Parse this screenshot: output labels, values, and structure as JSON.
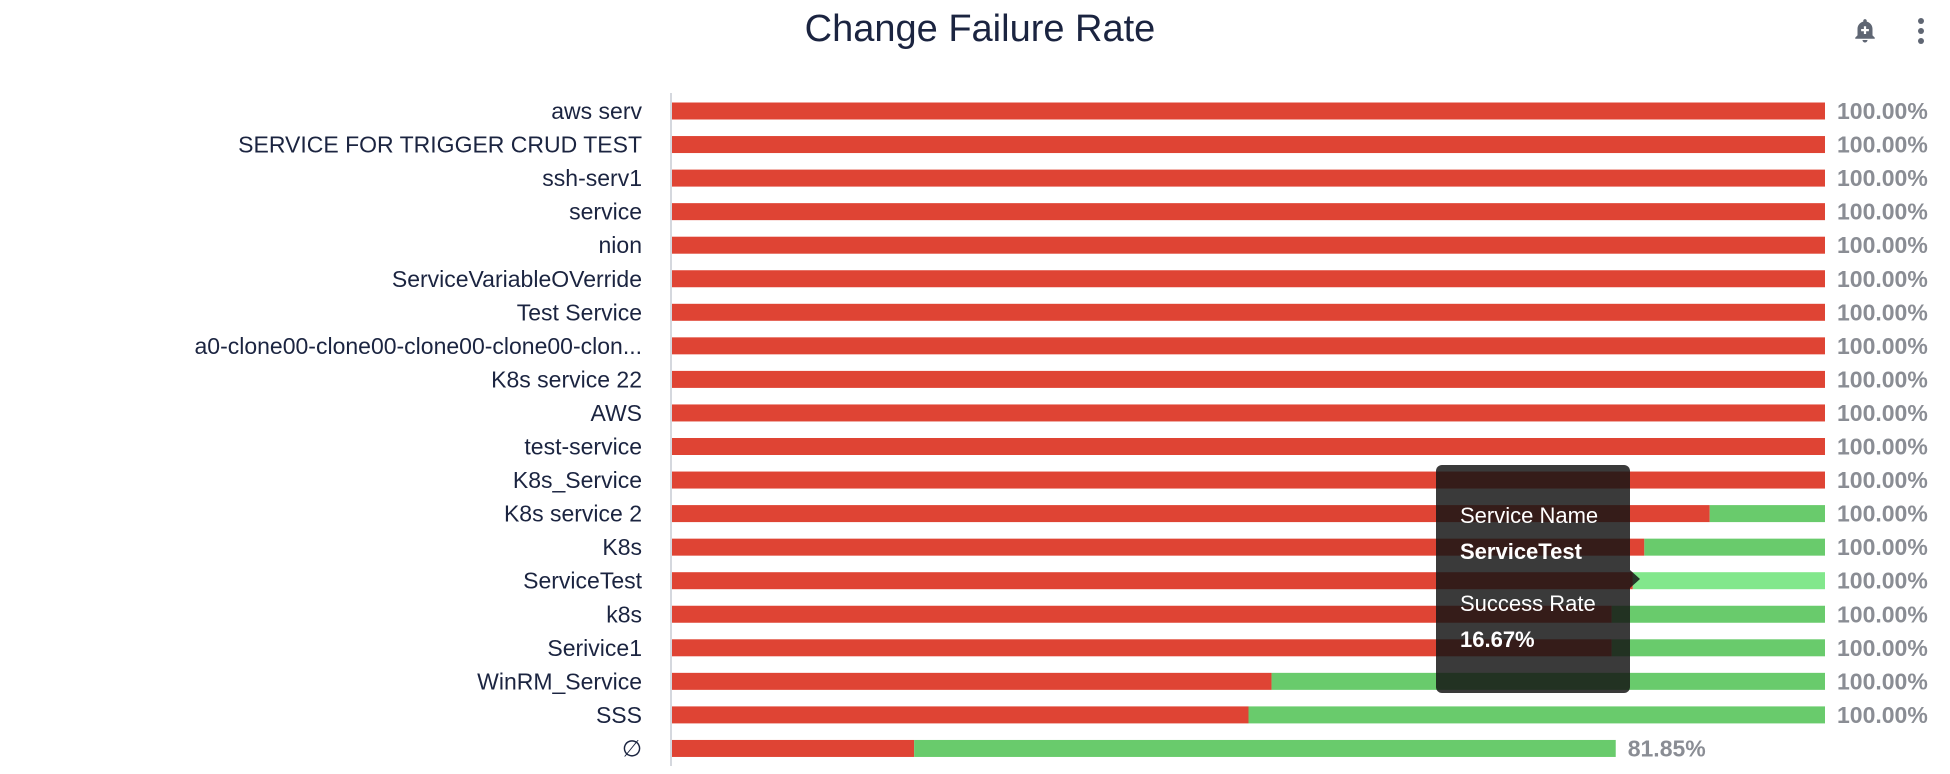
{
  "header": {
    "title": "Change Failure Rate",
    "icons": [
      "add-alert-icon",
      "more-vertical-icon"
    ]
  },
  "colors": {
    "failure": "#df4434",
    "success": "#69cb6c",
    "success_highlight": "#82e78c",
    "value_label": "#8a8d94",
    "axis": "#c7cbd3"
  },
  "chart_data": {
    "type": "bar",
    "orientation": "horizontal",
    "stacked": true,
    "title": "Change Failure Rate",
    "xlim": [
      0,
      100
    ],
    "grid": false,
    "legend": "none",
    "categories": [
      "aws serv",
      "SERVICE FOR TRIGGER CRUD TEST",
      "ssh-serv1",
      "service",
      "nion",
      "ServiceVariableOVerride",
      "Test Service",
      "a0-clone00-clone00-clone00-clone00-clon...",
      "K8s service 22",
      "AWS",
      "test-service",
      "K8s_Service",
      "K8s service 2",
      "K8s",
      "ServiceTest",
      "k8s",
      "Serivice1",
      "WinRM_Service",
      "SSS",
      "∅"
    ],
    "series": [
      {
        "values": [
          100,
          100,
          100,
          100,
          100,
          100,
          100,
          100,
          100,
          100,
          100,
          100,
          90,
          84.33,
          83.33,
          81.5,
          81.5,
          52,
          50,
          21
        ]
      },
      {
        "values": [
          0,
          0,
          0,
          0,
          0,
          0,
          0,
          0,
          0,
          0,
          0,
          0,
          10,
          15.67,
          16.67,
          18.5,
          18.5,
          48,
          50,
          60.85
        ]
      }
    ],
    "value_labels": [
      "100.00%",
      "100.00%",
      "100.00%",
      "100.00%",
      "100.00%",
      "100.00%",
      "100.00%",
      "100.00%",
      "100.00%",
      "100.00%",
      "100.00%",
      "100.00%",
      "100.00%",
      "100.00%",
      "100.00%",
      "100.00%",
      "100.00%",
      "100.00%",
      "100.00%",
      "81.85%"
    ],
    "highlighted_category": "ServiceTest"
  },
  "tooltip": {
    "name_title": "Service Name",
    "name_value": "ServiceTest",
    "rate_title": "Success Rate",
    "rate_value": "16.67%"
  }
}
